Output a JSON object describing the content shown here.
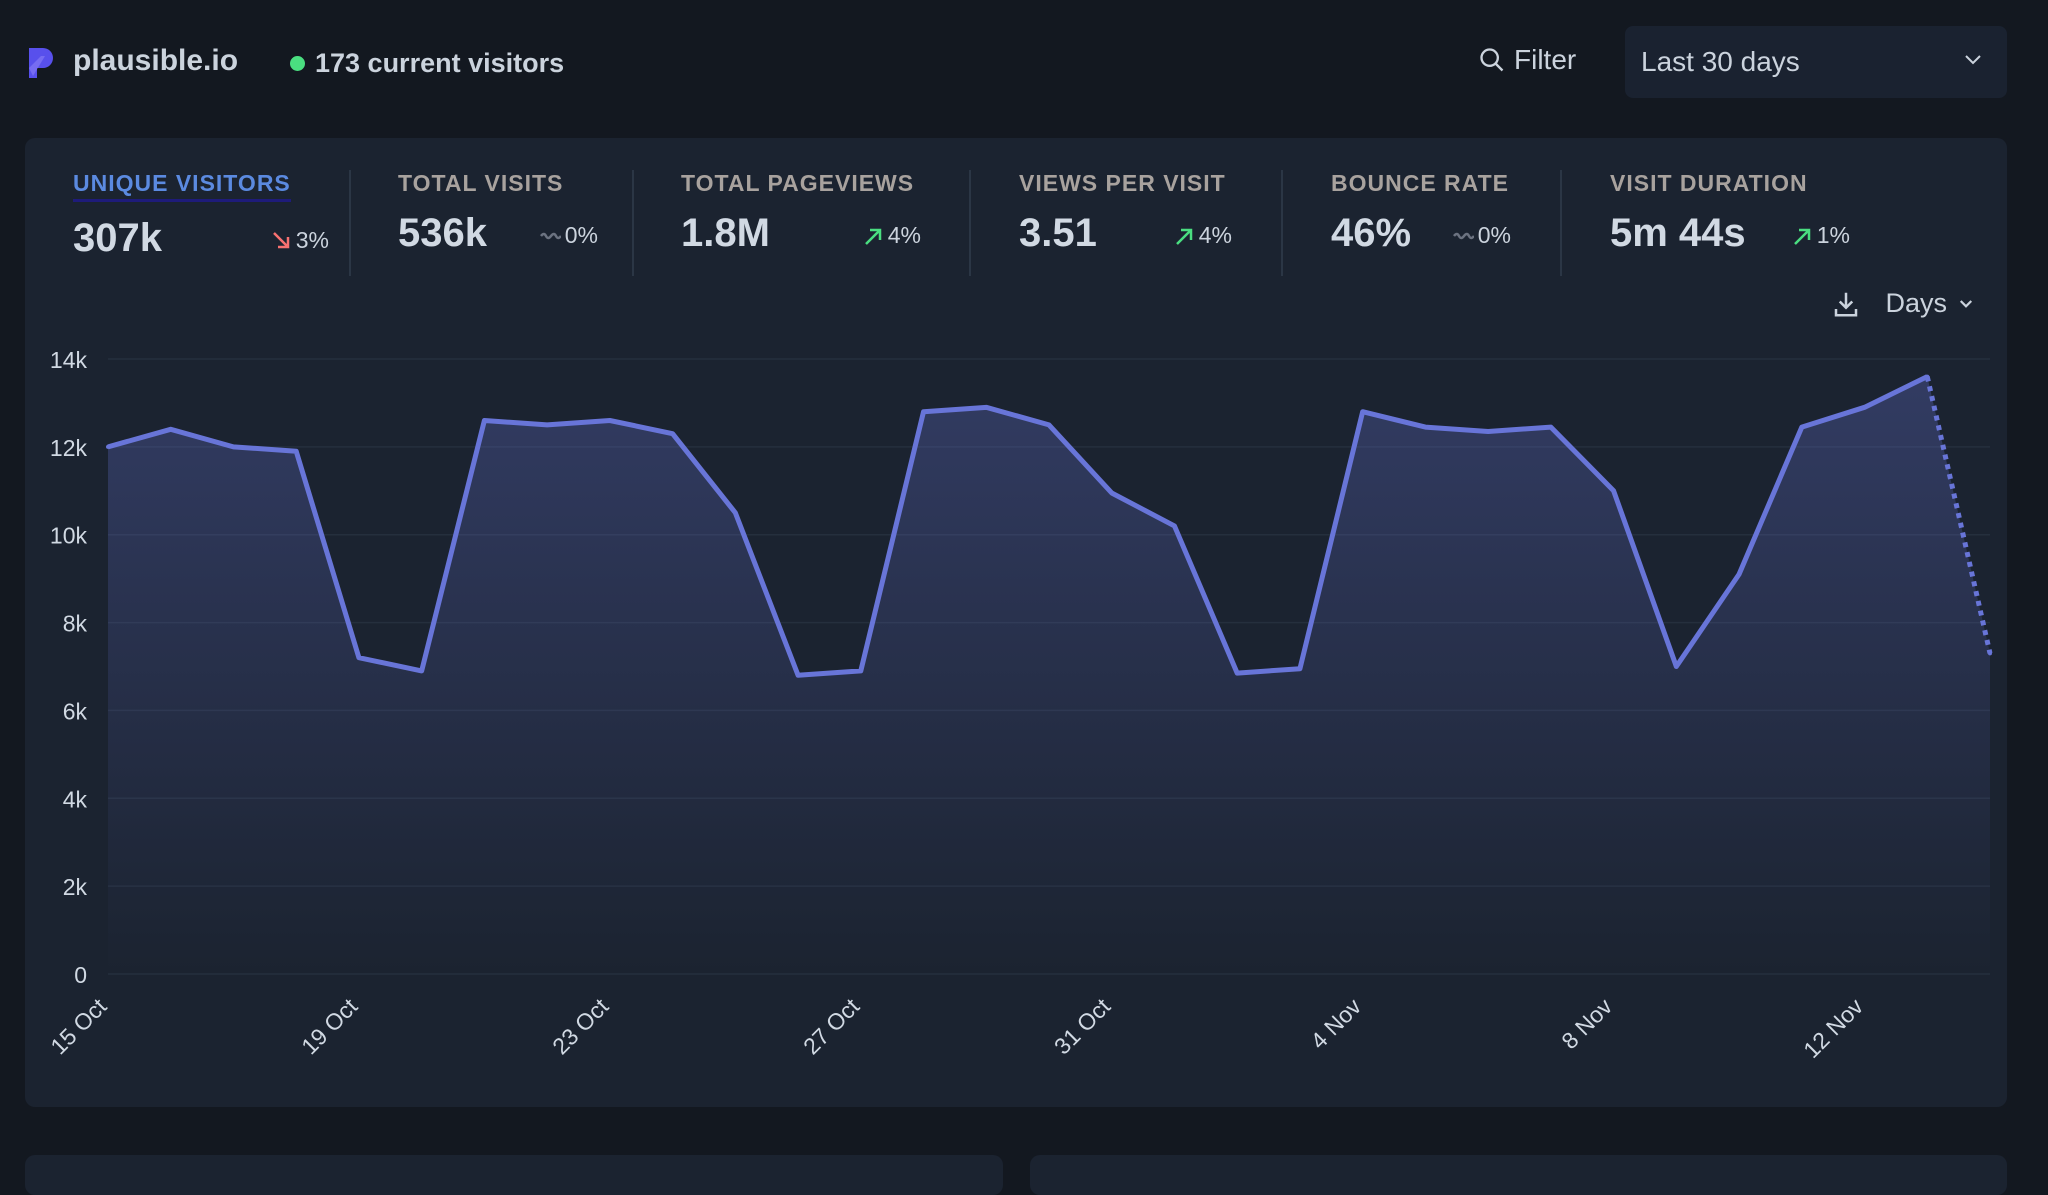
{
  "header": {
    "site": "plausible.io",
    "current_visitors": "173 current visitors",
    "filter_label": "Filter",
    "period": "Last 30 days"
  },
  "colors": {
    "accent": "#6875d8",
    "live": "#4ade80",
    "down": "#f87171",
    "up": "#4ade80",
    "neutral": "#6b7280"
  },
  "metrics": [
    {
      "label": "UNIQUE VISITORS",
      "value": "307k",
      "change": "3%",
      "trend": "down",
      "active": true
    },
    {
      "label": "TOTAL VISITS",
      "value": "536k",
      "change": "0%",
      "trend": "flat"
    },
    {
      "label": "TOTAL PAGEVIEWS",
      "value": "1.8M",
      "change": "4%",
      "trend": "up"
    },
    {
      "label": "VIEWS PER VISIT",
      "value": "3.51",
      "change": "4%",
      "trend": "up"
    },
    {
      "label": "BOUNCE RATE",
      "value": "46%",
      "change": "0%",
      "trend": "flat"
    },
    {
      "label": "VISIT DURATION",
      "value": "5m 44s",
      "change": "1%",
      "trend": "up"
    }
  ],
  "chart_controls": {
    "interval": "Days",
    "download_icon": "download-icon"
  },
  "chart_data": {
    "type": "area",
    "ylim": [
      0,
      14000
    ],
    "yticks": [
      "0",
      "2k",
      "4k",
      "6k",
      "8k",
      "10k",
      "12k",
      "14k"
    ],
    "xticks": [
      "15 Oct",
      "19 Oct",
      "23 Oct",
      "27 Oct",
      "31 Oct",
      "4 Nov",
      "8 Nov",
      "12 Nov"
    ],
    "x": [
      "15 Oct",
      "16 Oct",
      "17 Oct",
      "18 Oct",
      "19 Oct",
      "20 Oct",
      "21 Oct",
      "22 Oct",
      "23 Oct",
      "24 Oct",
      "25 Oct",
      "26 Oct",
      "27 Oct",
      "28 Oct",
      "29 Oct",
      "30 Oct",
      "31 Oct",
      "1 Nov",
      "2 Nov",
      "3 Nov",
      "4 Nov",
      "5 Nov",
      "6 Nov",
      "7 Nov",
      "8 Nov",
      "9 Nov",
      "10 Nov",
      "11 Nov",
      "12 Nov",
      "13 Nov",
      "14 Nov"
    ],
    "values": [
      12000,
      12400,
      12000,
      11900,
      7200,
      6900,
      12600,
      12500,
      12600,
      12300,
      10500,
      6800,
      6900,
      12800,
      12900,
      12500,
      10950,
      10200,
      6850,
      6950,
      12800,
      12450,
      12350,
      12450,
      11000,
      7000,
      9100,
      12450,
      12900,
      13600,
      7300
    ],
    "incomplete_last_point": true,
    "grid": true
  }
}
